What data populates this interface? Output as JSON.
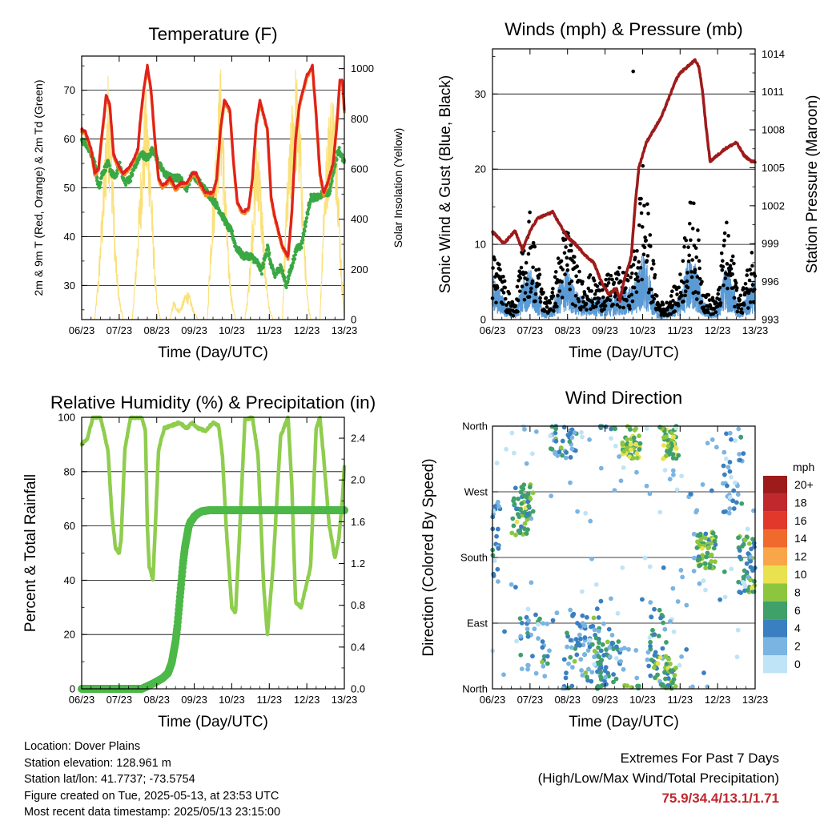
{
  "info": {
    "location": "Location: Dover Plains",
    "elevation": "Station elevation: 128.961 m",
    "latlon": "Station lat/lon: 41.7737; -73.5754",
    "created": "Figure created on Tue, 2025-05-13, at 23:53 UTC",
    "recent": "Most recent data timestamp: 2025/05/13 23:15:00"
  },
  "extremes": {
    "title": "Extremes For Past 7 Days",
    "subtitle": "(High/Low/Max Wind/Total Precipitation)",
    "values": "75.9/34.4/13.1/1.71"
  },
  "colors": {
    "temp2m": "#e0221c",
    "temp9m": "#f28c28",
    "dewpoint": "#3aa844",
    "solar": "#fbe07a",
    "gust": "#000000",
    "wind": "#5b9bd5",
    "pressure": "#9e1b1b",
    "rh": "#8fcd4e",
    "precip": "#4cb848"
  },
  "chart_data": [
    {
      "type": "line",
      "title": "Temperature (F)",
      "xlabel": "Time (Day/UTC)",
      "ylabel": "2m & 9m T (Red, Orange) & 2m Td (Green)",
      "ylabel_right": "Solar Insolation (Yellow)",
      "x_ticks": [
        "06/23",
        "07/23",
        "08/23",
        "09/23",
        "10/23",
        "11/23",
        "12/23",
        "13/23"
      ],
      "xlim": [
        0,
        7
      ],
      "ylim": [
        23,
        77
      ],
      "y_ticks": [
        30,
        40,
        50,
        60,
        70
      ],
      "ylim_right": [
        0,
        1050
      ],
      "y_ticks_right": [
        0,
        200,
        400,
        600,
        800,
        1000
      ],
      "series": [
        {
          "name": "2m T",
          "x": [
            0,
            0.1,
            0.25,
            0.35,
            0.45,
            0.5,
            0.6,
            0.65,
            0.75,
            0.85,
            0.95,
            1.1,
            1.25,
            1.4,
            1.5,
            1.55,
            1.65,
            1.75,
            1.85,
            1.95,
            2.05,
            2.15,
            2.25,
            2.35,
            2.5,
            2.65,
            2.8,
            2.95,
            3.05,
            3.15,
            3.3,
            3.5,
            3.6,
            3.7,
            3.8,
            3.95,
            4.05,
            4.15,
            4.3,
            4.45,
            4.55,
            4.65,
            4.75,
            4.95,
            5.05,
            5.15,
            5.35,
            5.5,
            5.6,
            5.7,
            5.8,
            6.0,
            6.15,
            6.25,
            6.35,
            6.45,
            6.55,
            6.7,
            6.8,
            6.88,
            6.95,
            7.0
          ],
          "y": [
            62,
            61.5,
            58,
            53,
            54,
            58,
            65,
            69,
            67,
            57,
            55,
            53,
            54,
            56,
            58,
            63,
            70,
            75,
            70,
            60,
            52,
            50.5,
            51,
            52,
            50,
            51,
            51,
            53,
            53,
            51,
            49,
            49,
            52,
            62,
            68,
            66,
            55,
            47,
            45,
            46,
            52,
            63,
            68,
            62,
            48,
            44,
            38,
            36,
            45,
            60,
            67,
            73,
            75,
            65,
            53,
            49,
            51,
            55,
            63,
            72,
            72,
            66
          ]
        },
        {
          "name": "Td",
          "x": [
            0,
            0.2,
            0.35,
            0.45,
            0.55,
            0.7,
            0.8,
            0.9,
            1.0,
            1.15,
            1.3,
            1.45,
            1.6,
            1.75,
            1.9,
            2.05,
            2.2,
            2.4,
            2.6,
            2.8,
            2.95,
            3.15,
            3.35,
            3.55,
            3.7,
            3.9,
            4.0,
            4.1,
            4.3,
            4.5,
            4.65,
            4.8,
            4.95,
            5.05,
            5.15,
            5.3,
            5.45,
            5.6,
            5.75,
            5.85,
            5.95,
            6.1,
            6.3,
            6.45,
            6.6,
            6.75,
            6.85,
            7.0
          ],
          "y": [
            60,
            58,
            55,
            50,
            53,
            55,
            53,
            52,
            55,
            51,
            52,
            55,
            57,
            56,
            58,
            55,
            53,
            52,
            52,
            50,
            53,
            51,
            49,
            47,
            45,
            42,
            41,
            38,
            36,
            36,
            35,
            33,
            38,
            34,
            32,
            34,
            30,
            34,
            38,
            38,
            42,
            48,
            48,
            49,
            49,
            55,
            58,
            55
          ]
        },
        {
          "name": "Solar",
          "x": [
            0,
            0.35,
            0.45,
            0.6,
            0.7,
            0.8,
            0.9,
            1.0,
            1.1,
            1.35,
            1.45,
            1.6,
            1.7,
            1.8,
            1.9,
            2.0,
            2.1,
            2.35,
            2.45,
            2.6,
            2.7,
            2.8,
            2.9,
            3.0,
            3.1,
            3.35,
            3.45,
            3.6,
            3.7,
            3.8,
            3.9,
            4.0,
            4.1,
            4.35,
            4.45,
            4.6,
            4.7,
            4.8,
            4.9,
            5.0,
            5.1,
            5.35,
            5.45,
            5.6,
            5.7,
            5.8,
            5.9,
            6.0,
            6.1,
            6.35,
            6.45,
            6.6,
            6.7,
            6.8,
            6.9,
            7.0
          ],
          "y": [
            0,
            0,
            200,
            650,
            1000,
            780,
            300,
            100,
            0,
            0,
            250,
            700,
            950,
            800,
            400,
            80,
            0,
            0,
            80,
            40,
            80,
            120,
            90,
            30,
            0,
            0,
            400,
            800,
            1040,
            700,
            300,
            90,
            0,
            0,
            150,
            600,
            780,
            500,
            220,
            50,
            0,
            0,
            500,
            870,
            1030,
            900,
            500,
            120,
            0,
            0,
            520,
            880,
            940,
            800,
            300,
            0
          ]
        }
      ]
    },
    {
      "type": "scatter",
      "title": "Winds (mph) & Pressure (mb)",
      "xlabel": "Time (Day/UTC)",
      "ylabel": "Sonic Wind & Gust (Blue, Black)",
      "ylabel_right": "Station Pressure (Maroon)",
      "x_ticks": [
        "06/23",
        "07/23",
        "08/23",
        "09/23",
        "10/23",
        "11/23",
        "12/23",
        "13/23"
      ],
      "xlim": [
        0,
        7
      ],
      "ylim": [
        0,
        36
      ],
      "y_ticks": [
        0,
        10,
        20,
        30
      ],
      "ylim_right": [
        993,
        1014.4
      ],
      "y_ticks_right": [
        993,
        996,
        999,
        1002,
        1005,
        1008,
        1011,
        1014
      ],
      "gust_envelope": {
        "x": [
          0,
          0.2,
          0.4,
          0.6,
          0.8,
          1.0,
          1.2,
          1.4,
          1.6,
          1.8,
          2.0,
          2.2,
          2.4,
          2.6,
          2.8,
          3.0,
          3.2,
          3.4,
          3.6,
          3.8,
          4.0,
          4.2,
          4.4,
          4.6,
          4.8,
          5.0,
          5.2,
          5.4,
          5.6,
          5.8,
          6.0,
          6.2,
          6.4,
          6.6,
          6.8,
          7.0
        ],
        "y": [
          12,
          8,
          4,
          2,
          10,
          15,
          8,
          3,
          4,
          10,
          14,
          8,
          6,
          6,
          5,
          6,
          6,
          7,
          6,
          10,
          22,
          12,
          3,
          2,
          4,
          6,
          16,
          16,
          5,
          3,
          3,
          14,
          9,
          3,
          7,
          12
        ]
      },
      "wind_envelope": {
        "x": [
          0,
          0.2,
          0.4,
          0.6,
          0.8,
          1.0,
          1.2,
          1.4,
          1.6,
          1.8,
          2.0,
          2.2,
          2.4,
          2.6,
          2.8,
          3.0,
          3.2,
          3.4,
          3.6,
          3.8,
          4.0,
          4.2,
          4.4,
          4.6,
          4.8,
          5.0,
          5.2,
          5.4,
          5.6,
          5.8,
          6.0,
          6.2,
          6.4,
          6.6,
          6.8,
          7.0
        ],
        "y": [
          6,
          4,
          2,
          1,
          5,
          7,
          4,
          1,
          2,
          5,
          7,
          4,
          3,
          3,
          3,
          3,
          3,
          4,
          4,
          5,
          9,
          6,
          1,
          1,
          2,
          3,
          8,
          8,
          3,
          1,
          2,
          7,
          5,
          1,
          4,
          6
        ]
      },
      "series": [
        {
          "name": "Pressure",
          "x": [
            0,
            0.3,
            0.6,
            0.8,
            1.0,
            1.2,
            1.6,
            1.8,
            2.0,
            2.2,
            2.5,
            2.7,
            2.9,
            3.0,
            3.1,
            3.3,
            3.4,
            3.5,
            3.6,
            3.7,
            3.8,
            3.9,
            4.1,
            4.3,
            4.5,
            4.7,
            4.9,
            5.0,
            5.2,
            5.4,
            5.5,
            5.6,
            5.7,
            5.8,
            6.0,
            6.2,
            6.5,
            6.7,
            6.9,
            7.0
          ],
          "y": [
            1000,
            999,
            1000,
            998.5,
            1000,
            1001,
            1001.5,
            1000.5,
            999.5,
            999,
            998,
            997.5,
            996,
            995.5,
            995,
            995.5,
            994.5,
            996,
            997,
            998,
            1002,
            1005,
            1007,
            1008,
            1009,
            1010.5,
            1012,
            1012.5,
            1013,
            1013.5,
            1013,
            1011,
            1008,
            1005.5,
            1006,
            1006.5,
            1007,
            1006,
            1005.5,
            1005.5
          ]
        }
      ]
    },
    {
      "type": "line",
      "title": "Relative Humidity (%) & Precipitation (in)",
      "xlabel": "Time (Day/UTC)",
      "ylabel": "Percent & Total Rainfall",
      "x_ticks": [
        "06/23",
        "07/23",
        "08/23",
        "09/23",
        "10/23",
        "11/23",
        "12/23",
        "13/23"
      ],
      "xlim": [
        0,
        7
      ],
      "ylim": [
        0,
        100
      ],
      "y_ticks": [
        0,
        20,
        40,
        60,
        80,
        100
      ],
      "ylim_right": [
        0,
        2.6
      ],
      "y_ticks_right": [
        0.0,
        0.4,
        0.8,
        1.2,
        1.6,
        2.0,
        2.4
      ],
      "series": [
        {
          "name": "RH",
          "x": [
            0,
            0.15,
            0.3,
            0.5,
            0.7,
            0.8,
            0.9,
            1.0,
            1.05,
            1.15,
            1.3,
            1.45,
            1.6,
            1.7,
            1.75,
            1.8,
            1.9,
            2.05,
            2.2,
            2.4,
            2.6,
            2.8,
            2.95,
            3.1,
            3.3,
            3.5,
            3.65,
            3.75,
            3.85,
            4.0,
            4.1,
            4.2,
            4.35,
            4.55,
            4.7,
            4.85,
            4.95,
            5.1,
            5.3,
            5.5,
            5.6,
            5.7,
            5.85,
            6.1,
            6.25,
            6.35,
            6.45,
            6.6,
            6.75,
            6.85,
            6.95,
            7.0
          ],
          "y": [
            90,
            92,
            100,
            100,
            88,
            65,
            52,
            50,
            55,
            88,
            100,
            100,
            100,
            95,
            60,
            45,
            40,
            88,
            96,
            97,
            98,
            96,
            98,
            96,
            95,
            98,
            97,
            86,
            60,
            30,
            28,
            55,
            99,
            100,
            86,
            38,
            20,
            45,
            93,
            100,
            75,
            32,
            30,
            45,
            96,
            100,
            85,
            60,
            48,
            55,
            70,
            82
          ]
        },
        {
          "name": "Precip",
          "x": [
            0,
            1.0,
            1.6,
            1.9,
            2.15,
            2.3,
            2.4,
            2.5,
            2.55,
            2.6,
            2.65,
            2.7,
            2.75,
            2.8,
            2.85,
            2.9,
            2.95,
            3.0,
            3.1,
            3.2,
            3.4,
            3.6,
            4.0,
            5.0,
            6.0,
            7.0
          ],
          "y": [
            0,
            0,
            0,
            0.05,
            0.1,
            0.15,
            0.25,
            0.45,
            0.6,
            0.8,
            1.0,
            1.2,
            1.35,
            1.45,
            1.55,
            1.6,
            1.62,
            1.65,
            1.68,
            1.7,
            1.71,
            1.71,
            1.71,
            1.71,
            1.71,
            1.71
          ]
        }
      ]
    },
    {
      "type": "scatter",
      "title": "Wind Direction",
      "xlabel": "Time (Day/UTC)",
      "ylabel": "Direction (Colored By Speed)",
      "x_ticks": [
        "06/23",
        "07/23",
        "08/23",
        "09/23",
        "10/23",
        "11/23",
        "12/23",
        "13/23"
      ],
      "xlim": [
        0,
        7
      ],
      "y_ticks": [
        "North",
        "East",
        "South",
        "West",
        "North"
      ],
      "ylim": [
        0,
        360
      ],
      "legend": {
        "title": "mph",
        "labels": [
          "20+",
          "18",
          "16",
          "14",
          "12",
          "10",
          "8",
          "6",
          "4",
          "2",
          "0"
        ],
        "colors": [
          "#9e1b1b",
          "#c0282d",
          "#e0392b",
          "#f06a2e",
          "#f9a64a",
          "#e9e14f",
          "#8cc63f",
          "#3fa06a",
          "#3a7fc0",
          "#7ab4e2",
          "#bfe3f7"
        ]
      },
      "clusters": [
        {
          "x": 0.05,
          "dx": 0.15,
          "y": 200,
          "dy": 60,
          "n": 30,
          "speed": 3
        },
        {
          "x": 0.8,
          "dx": 0.3,
          "y": 245,
          "dy": 35,
          "n": 60,
          "speed": 5
        },
        {
          "x": 1.1,
          "dx": 0.4,
          "y": 60,
          "dy": 50,
          "n": 30,
          "speed": 3
        },
        {
          "x": 1.9,
          "dx": 0.35,
          "y": 340,
          "dy": 25,
          "n": 40,
          "speed": 4
        },
        {
          "x": 2.4,
          "dx": 0.5,
          "y": 60,
          "dy": 50,
          "n": 70,
          "speed": 3
        },
        {
          "x": 3.1,
          "dx": 0.3,
          "y": 30,
          "dy": 35,
          "n": 50,
          "speed": 4
        },
        {
          "x": 3.7,
          "dx": 0.25,
          "y": 340,
          "dy": 25,
          "n": 55,
          "speed": 7
        },
        {
          "x": 4.4,
          "dx": 0.3,
          "y": 60,
          "dy": 50,
          "n": 35,
          "speed": 4
        },
        {
          "x": 4.7,
          "dx": 0.2,
          "y": 340,
          "dy": 25,
          "n": 55,
          "speed": 7
        },
        {
          "x": 4.6,
          "dx": 0.3,
          "y": 20,
          "dy": 25,
          "n": 30,
          "speed": 6
        },
        {
          "x": 5.7,
          "dx": 0.25,
          "y": 190,
          "dy": 25,
          "n": 55,
          "speed": 6
        },
        {
          "x": 6.4,
          "dx": 0.3,
          "y": 300,
          "dy": 60,
          "n": 40,
          "speed": 2
        },
        {
          "x": 6.8,
          "dx": 0.25,
          "y": 170,
          "dy": 40,
          "n": 50,
          "speed": 5
        },
        {
          "x": 3.5,
          "dx": 3.5,
          "y": 180,
          "dy": 180,
          "n": 140,
          "speed": 1
        }
      ]
    }
  ]
}
